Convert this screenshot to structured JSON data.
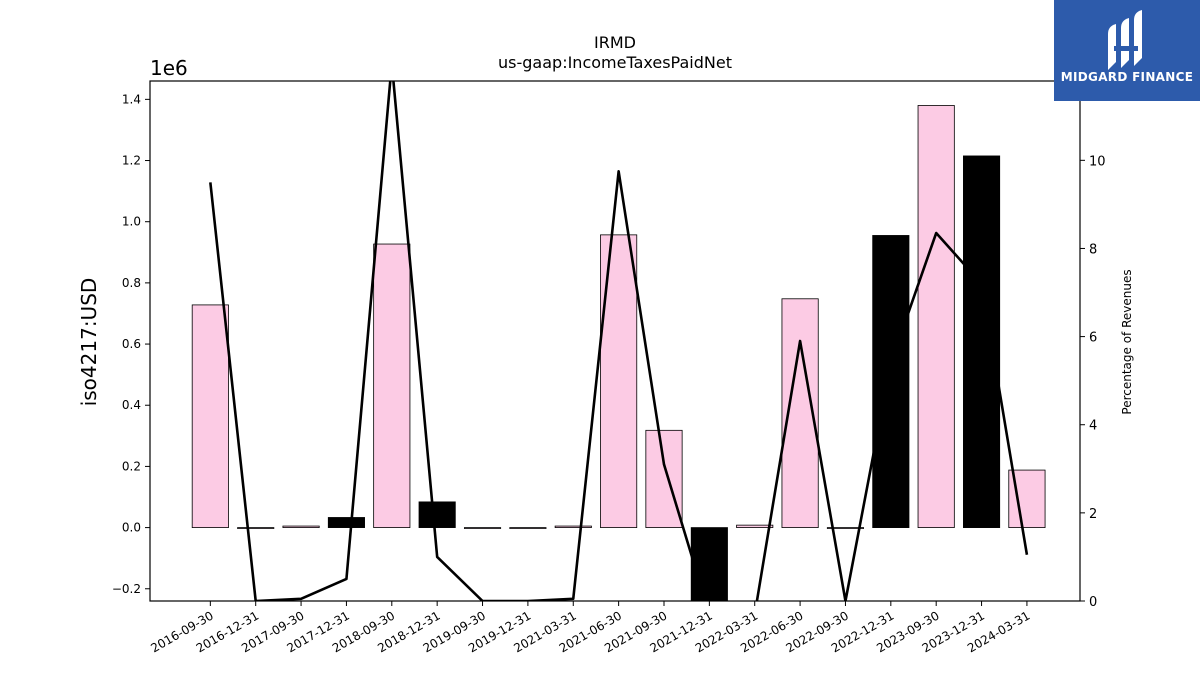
{
  "chart_data": {
    "type": "bar",
    "title": "IRMD",
    "subtitle": "us-gaap:IncomeTaxesPaidNet",
    "ylabel": "iso4217:USD",
    "y_offset_label": "1e6",
    "y2label": "Percentage of Revenues",
    "categories": [
      "2016-09-30",
      "2016-12-31",
      "2017-09-30",
      "2017-12-31",
      "2018-09-30",
      "2018-12-31",
      "2019-09-30",
      "2019-12-31",
      "2021-03-31",
      "2021-06-30",
      "2021-09-30",
      "2021-12-31",
      "2022-03-31",
      "2022-06-30",
      "2022-09-30",
      "2022-12-31",
      "2023-09-30",
      "2023-12-31",
      "2024-03-31"
    ],
    "ylim": [
      -0.24,
      1.46
    ],
    "yticks": [
      -0.2,
      0.0,
      0.2,
      0.4,
      0.6,
      0.8,
      1.0,
      1.2,
      1.4
    ],
    "ytick_labels": [
      "−0.2",
      "0.0",
      "0.2",
      "0.4",
      "0.6",
      "0.8",
      "1.0",
      "1.2",
      "1.4"
    ],
    "y2lim": [
      0,
      11.8
    ],
    "y2ticks": [
      0,
      2,
      4,
      6,
      8,
      10
    ],
    "y2tick_labels": [
      "0",
      "2",
      "4",
      "6",
      "8",
      "10"
    ],
    "series": [
      {
        "type": "bar",
        "units": "1e6 USD",
        "values": [
          0.728,
          -0.003,
          0.005,
          0.033,
          0.927,
          0.084,
          -0.003,
          -0.003,
          0.005,
          0.957,
          0.318,
          -0.3,
          0.008,
          0.748,
          -0.003,
          0.955,
          1.38,
          1.215,
          0.188
        ],
        "colors": [
          "#fccbe4",
          "#fccbe4",
          "#fccbe4",
          "#000000",
          "#fccbe4",
          "#000000",
          "#fccbe4",
          "#fccbe4",
          "#fccbe4",
          "#fccbe4",
          "#fccbe4",
          "#000000",
          "#fccbe4",
          "#fccbe4",
          "#fccbe4",
          "#000000",
          "#fccbe4",
          "#000000",
          "#fccbe4"
        ]
      },
      {
        "type": "line",
        "axis": "right",
        "color": "#000000",
        "values": [
          9.5,
          0.0,
          0.05,
          0.5,
          12.2,
          1.0,
          0.0,
          0.0,
          0.05,
          9.75,
          3.1,
          -0.3,
          -0.3,
          5.9,
          0.0,
          5.4,
          8.35,
          7.2,
          1.05
        ]
      }
    ],
    "grid": false,
    "legend": "none"
  },
  "logo": {
    "text": "MIDGARD FINANCE",
    "background": "#2d5bab"
  }
}
